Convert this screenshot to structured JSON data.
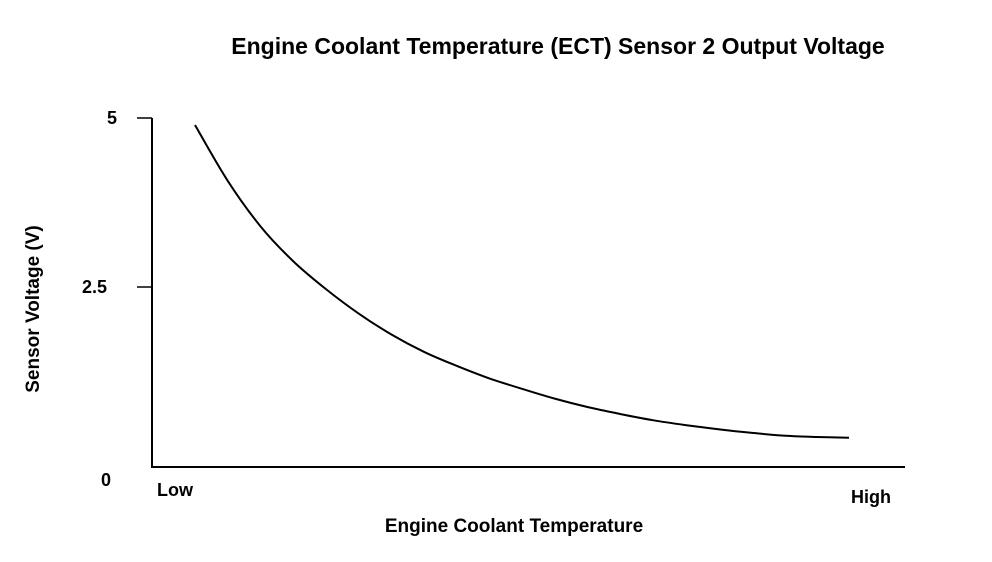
{
  "chart_data": {
    "type": "line",
    "title": "Engine Coolant Temperature (ECT) Sensor 2 Output Voltage",
    "xlabel": "Engine Coolant Temperature",
    "ylabel": "Sensor Voltage (V)",
    "x_tick_labels": [
      "Low",
      "High"
    ],
    "y_tick_labels": [
      "5",
      "2.5",
      "0"
    ],
    "ylim": [
      0,
      5
    ],
    "grid": false,
    "color": "#000000",
    "series": [
      {
        "x_relative": [
          0.0,
          0.05,
          0.1,
          0.15,
          0.2,
          0.25,
          0.3,
          0.35,
          0.4,
          0.45,
          0.5,
          0.55,
          0.6,
          0.65,
          0.7,
          0.75,
          0.8,
          0.85,
          0.9,
          0.95,
          1.0
        ],
        "values": [
          4.9,
          4.1,
          3.45,
          2.95,
          2.55,
          2.2,
          1.9,
          1.65,
          1.45,
          1.27,
          1.12,
          0.98,
          0.86,
          0.76,
          0.67,
          0.6,
          0.54,
          0.49,
          0.45,
          0.43,
          0.42
        ]
      }
    ]
  }
}
